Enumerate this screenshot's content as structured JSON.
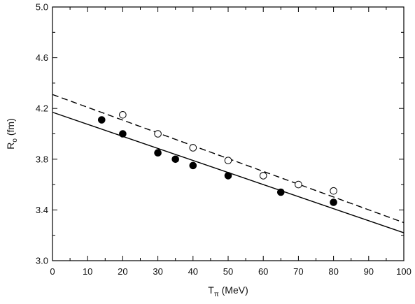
{
  "chart_data": {
    "type": "scatter",
    "xlabel": {
      "main": "T",
      "sub": "π",
      "rest": " (MeV)"
    },
    "ylabel": {
      "main": "R",
      "sub": "o",
      "rest": " (fm)"
    },
    "xlim": [
      0,
      100
    ],
    "ylim": [
      3.0,
      5.0
    ],
    "x_ticks": [
      "0",
      "10",
      "20",
      "30",
      "40",
      "50",
      "60",
      "70",
      "80",
      "90",
      "100"
    ],
    "y_ticks": [
      "3.0",
      "3.4",
      "3.8",
      "4.2",
      "4.6",
      "5.0"
    ],
    "grid": false,
    "series": [
      {
        "marker": "filled-circle",
        "color": "#000000",
        "points": [
          [
            14,
            4.11
          ],
          [
            20,
            4.0
          ],
          [
            30,
            3.85
          ],
          [
            35,
            3.8
          ],
          [
            40,
            3.75
          ],
          [
            50,
            3.67
          ],
          [
            65,
            3.54
          ],
          [
            80,
            3.46
          ]
        ]
      },
      {
        "marker": "open-circle",
        "color": "#000000",
        "points": [
          [
            20,
            4.15
          ],
          [
            30,
            4.0
          ],
          [
            40,
            3.89
          ],
          [
            50,
            3.79
          ],
          [
            60,
            3.67
          ],
          [
            70,
            3.6
          ],
          [
            80,
            3.55
          ]
        ]
      }
    ],
    "lines": [
      {
        "style": "solid",
        "color": "#000000",
        "from": [
          0,
          4.17
        ],
        "to": [
          100,
          3.22
        ]
      },
      {
        "style": "dashed",
        "color": "#000000",
        "from": [
          0,
          4.31
        ],
        "to": [
          100,
          3.3
        ]
      }
    ]
  }
}
